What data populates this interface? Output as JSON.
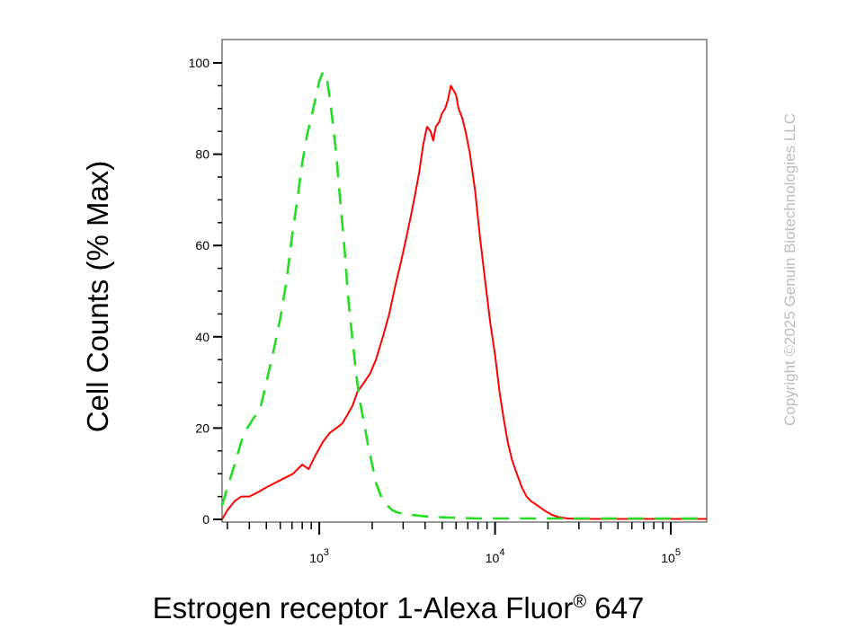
{
  "chart_data": {
    "type": "line",
    "title": "",
    "xlabel": "Estrogen receptor 1-Alexa Fluor",
    "xlabel_reg": "®",
    "xlabel_tail": " 647",
    "ylabel": "Cell Counts (% Max)",
    "xscale": "log",
    "xlim": [
      280,
      160000
    ],
    "ylim": [
      0,
      105
    ],
    "y_ticks": [
      0,
      20,
      40,
      60,
      80,
      100
    ],
    "y_tick_labels": [
      "0",
      "20",
      "40",
      "60",
      "80",
      "100"
    ],
    "x_major_ticks": [
      1000,
      10000,
      100000
    ],
    "x_tick_label_base": "10",
    "x_tick_label_exps": [
      "3",
      "4",
      "5"
    ],
    "grid": false,
    "series": [
      {
        "color": "#ff0000",
        "dash": "solid",
        "x": [
          280,
          300,
          330,
          360,
          400,
          450,
          500,
          560,
          630,
          710,
          800,
          870,
          950,
          1050,
          1150,
          1250,
          1350,
          1450,
          1550,
          1650,
          1800,
          1950,
          2100,
          2300,
          2500,
          2700,
          2900,
          3100,
          3300,
          3500,
          3700,
          3900,
          4100,
          4300,
          4450,
          4600,
          4800,
          5000,
          5200,
          5400,
          5600,
          5800,
          6000,
          6200,
          6500,
          6800,
          7200,
          7700,
          8200,
          8800,
          9400,
          10000,
          10600,
          11200,
          11800,
          12500,
          13300,
          14200,
          15100,
          16000,
          17500,
          19000,
          21000,
          23000,
          26000,
          30000,
          40000,
          60000,
          100000,
          160000
        ],
        "y": [
          0,
          2,
          4,
          5,
          5,
          6,
          7,
          8,
          9,
          10,
          12,
          11,
          14,
          17,
          19,
          20,
          21,
          23,
          25,
          28,
          30,
          32,
          35,
          40,
          45,
          51,
          56,
          61,
          66,
          71,
          76,
          82,
          86,
          85,
          83,
          86,
          87,
          89,
          90,
          92,
          95,
          94,
          93,
          90,
          88,
          85,
          80,
          72,
          62,
          52,
          43,
          36,
          28,
          22,
          17,
          13,
          10,
          7,
          5,
          4,
          3,
          2,
          1,
          0.5,
          0.2,
          0.1,
          0.1,
          0.1,
          0.1,
          0.1
        ]
      },
      {
        "color": "#22dd22",
        "dash": "dashed",
        "x": [
          280,
          300,
          330,
          360,
          390,
          420,
          460,
          500,
          550,
          600,
          650,
          700,
          750,
          800,
          850,
          900,
          950,
          1000,
          1050,
          1100,
          1150,
          1200,
          1250,
          1300,
          1350,
          1400,
          1450,
          1500,
          1560,
          1620,
          1700,
          1800,
          1900,
          2000,
          2100,
          2200,
          2300,
          2450,
          2600,
          2800,
          3000,
          3300,
          3700,
          4200,
          4800,
          5500,
          6500,
          8000,
          10000,
          14000,
          20000,
          40000,
          100000,
          160000
        ],
        "y": [
          3,
          7,
          12,
          17,
          20,
          22,
          24,
          30,
          37,
          44,
          52,
          62,
          70,
          78,
          84,
          88,
          92,
          96,
          98,
          97,
          92,
          86,
          80,
          72,
          65,
          58,
          50,
          44,
          38,
          32,
          26,
          21,
          16,
          12,
          8,
          6,
          4,
          3,
          2,
          1.5,
          1.2,
          1,
          0.8,
          0.6,
          0.5,
          0.4,
          0.3,
          0.2,
          0.2,
          0.2,
          0.2,
          0.2,
          0.2,
          0.2
        ]
      }
    ]
  },
  "watermark": "Copyright ©2025 Genuin Biotechnologies LLC"
}
